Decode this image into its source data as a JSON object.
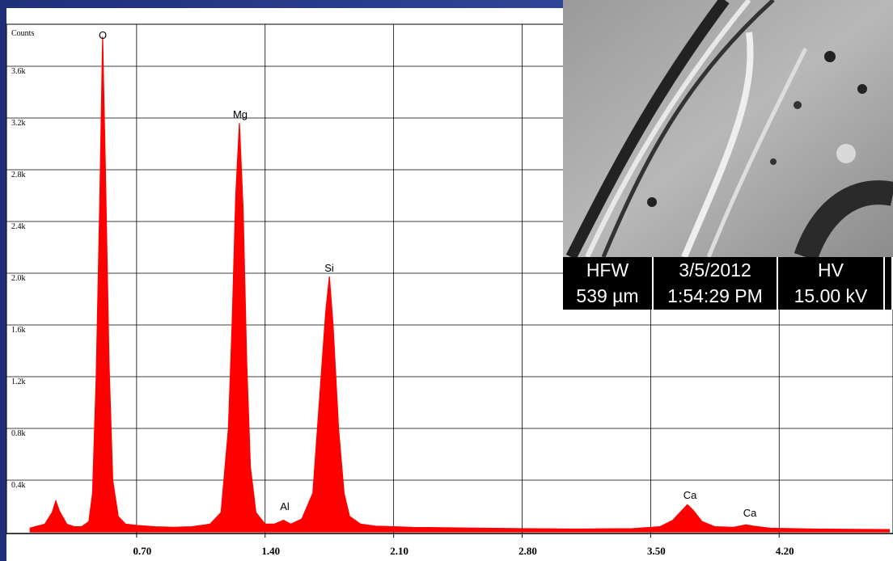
{
  "chart_data": {
    "type": "area",
    "y_label": "Counts",
    "color": "#ff0000",
    "grid": true,
    "xlim": [
      0,
      4.82
    ],
    "ylim": [
      0,
      3925
    ],
    "xticks": [
      {
        "value": 0.7,
        "label": "0.70"
      },
      {
        "value": 1.4,
        "label": "1.40"
      },
      {
        "value": 2.1,
        "label": "2.10"
      },
      {
        "value": 2.8,
        "label": "2.80"
      },
      {
        "value": 3.5,
        "label": "3.50"
      },
      {
        "value": 4.2,
        "label": "4.20"
      }
    ],
    "yticks": [
      {
        "value": 400,
        "label": "0.4k"
      },
      {
        "value": 800,
        "label": "0.8k"
      },
      {
        "value": 1200,
        "label": "1.2k"
      },
      {
        "value": 1600,
        "label": "1.6k"
      },
      {
        "value": 2000,
        "label": "2.0k"
      },
      {
        "value": 2400,
        "label": "2.4k"
      },
      {
        "value": 2800,
        "label": "2.8k"
      },
      {
        "value": 3200,
        "label": "3.2k"
      },
      {
        "value": 3600,
        "label": "3.6k"
      }
    ],
    "x": [
      0.12,
      0.2,
      0.24,
      0.26,
      0.28,
      0.32,
      0.36,
      0.4,
      0.44,
      0.46,
      0.48,
      0.5,
      0.515,
      0.53,
      0.55,
      0.57,
      0.6,
      0.64,
      0.7,
      0.8,
      0.9,
      1.0,
      1.1,
      1.16,
      1.2,
      1.22,
      1.24,
      1.26,
      1.28,
      1.3,
      1.32,
      1.35,
      1.4,
      1.45,
      1.5,
      1.54,
      1.6,
      1.66,
      1.7,
      1.73,
      1.75,
      1.77,
      1.8,
      1.83,
      1.86,
      1.92,
      2.0,
      2.2,
      2.5,
      2.8,
      3.1,
      3.4,
      3.55,
      3.62,
      3.68,
      3.7,
      3.73,
      3.78,
      3.85,
      3.95,
      4.02,
      4.06,
      4.15,
      4.4,
      4.6,
      4.8
    ],
    "values": [
      30,
      60,
      150,
      240,
      160,
      60,
      40,
      40,
      80,
      300,
      1200,
      2600,
      3830,
      2800,
      1300,
      400,
      120,
      60,
      50,
      40,
      35,
      40,
      60,
      150,
      800,
      1600,
      2600,
      3160,
      2500,
      1300,
      500,
      150,
      60,
      60,
      90,
      60,
      100,
      300,
      1100,
      1700,
      1975,
      1600,
      800,
      300,
      120,
      60,
      45,
      35,
      30,
      25,
      22,
      25,
      40,
      90,
      180,
      210,
      170,
      80,
      40,
      35,
      55,
      45,
      28,
      22,
      20,
      18
    ],
    "annotations": [
      "O",
      "Mg",
      "Al",
      "Si",
      "Ca",
      "Ca"
    ]
  },
  "image_info": {
    "headers": [
      "HFW",
      "3/5/2012",
      "HV"
    ],
    "values": [
      "539 µm",
      "1:54:29 PM",
      "15.00 kV"
    ]
  }
}
